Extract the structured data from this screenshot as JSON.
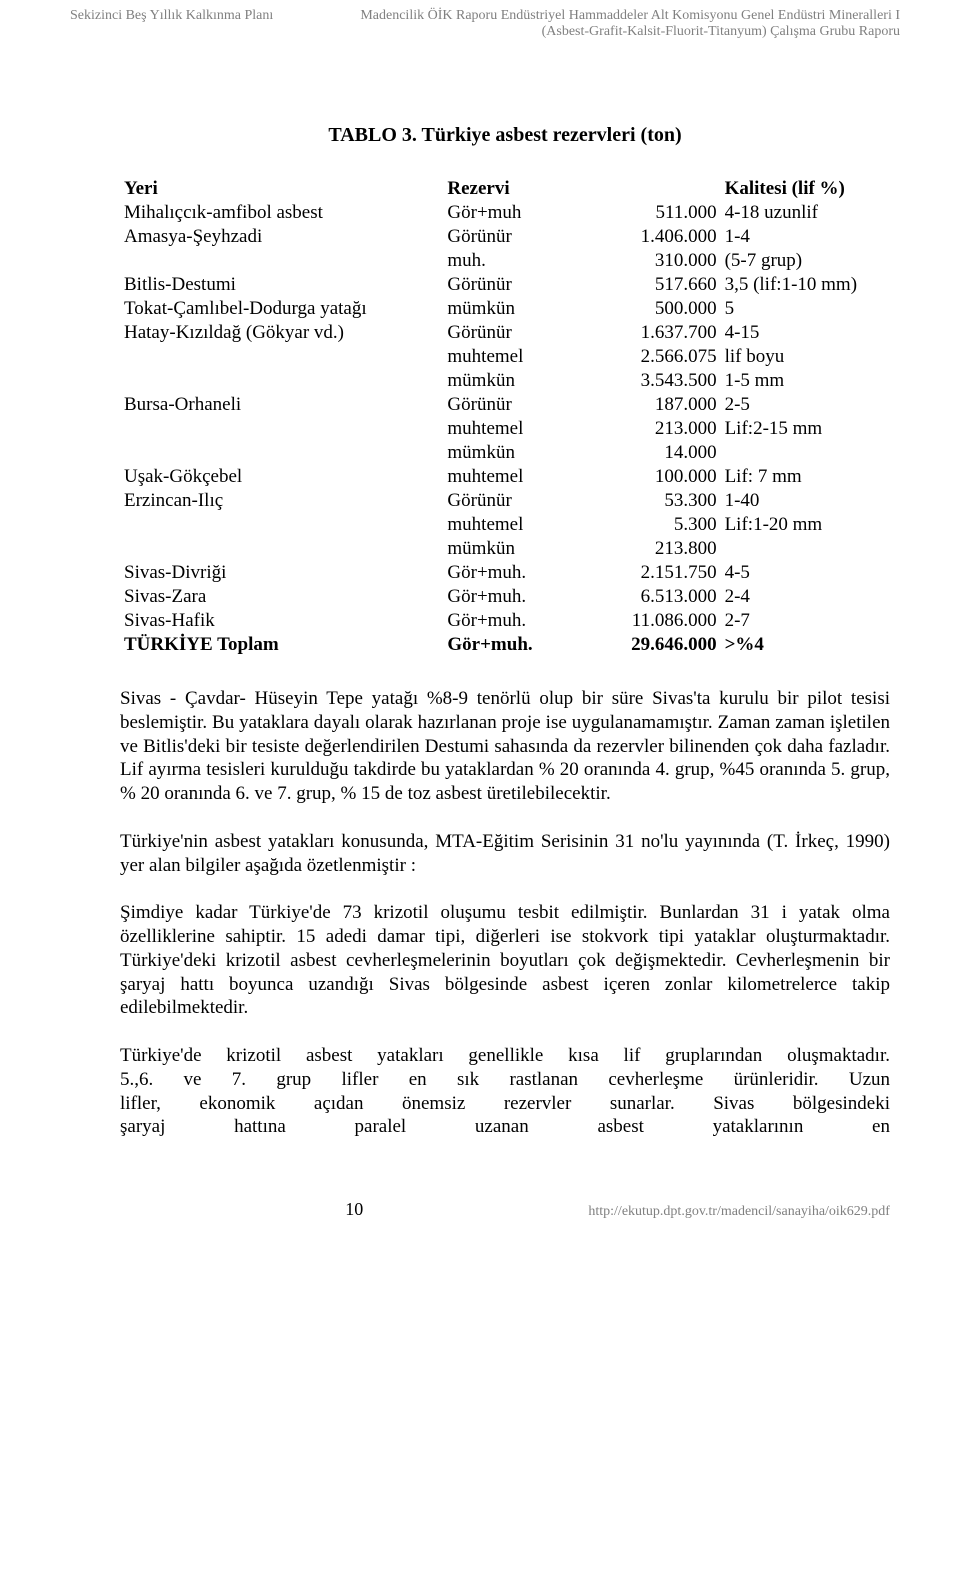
{
  "header": {
    "left": "Sekizinci Beş Yıllık Kalkınma Planı",
    "right1": "Madencilik ÖİK Raporu Endüstriyel Hammaddeler Alt Komisyonu Genel Endüstri Mineralleri I",
    "right2": "(Asbest-Grafit-Kalsit-Fluorit-Titanyum) Çalışma Grubu Raporu"
  },
  "title": "TABLO 3. Türkiye asbest rezervleri (ton)",
  "table": {
    "headers": {
      "yeri": "Yeri",
      "rezervi": "Rezervi",
      "kalitesi": "Kalitesi (lif %)"
    },
    "rows": [
      {
        "yeri": "Mihalıçcık-amfibol asbest",
        "rez": "Gör+muh",
        "val": "511.000",
        "kal": "4-18 uzunlif"
      },
      {
        "yeri": "Amasya-Şeyhzadi",
        "rez": "Görünür",
        "val": "1.406.000",
        "kal": "1-4"
      },
      {
        "yeri": "",
        "rez": "muh.",
        "val": "310.000",
        "kal": "(5-7 grup)"
      },
      {
        "yeri": "Bitlis-Destumi",
        "rez": "Görünür",
        "val": "517.660",
        "kal": "3,5 (lif:1-10 mm)"
      },
      {
        "yeri": "Tokat-Çamlıbel-Dodurga yatağı",
        "rez": "mümkün",
        "val": "500.000",
        "kal": "5"
      },
      {
        "yeri": "Hatay-Kızıldağ (Gökyar vd.)",
        "rez": "Görünür",
        "val": "1.637.700",
        "kal": "4-15"
      },
      {
        "yeri": "",
        "rez": "muhtemel",
        "val": "2.566.075",
        "kal": "lif boyu"
      },
      {
        "yeri": "",
        "rez": "mümkün",
        "val": "3.543.500",
        "kal": "1-5 mm"
      },
      {
        "yeri": "Bursa-Orhaneli",
        "rez": "Görünür",
        "val": "187.000",
        "kal": "2-5"
      },
      {
        "yeri": "",
        "rez": "muhtemel",
        "val": "213.000",
        "kal": "Lif:2-15 mm"
      },
      {
        "yeri": "",
        "rez": "mümkün",
        "val": "14.000",
        "kal": ""
      },
      {
        "yeri": "Uşak-Gökçebel",
        "rez": "muhtemel",
        "val": "100.000",
        "kal": "Lif: 7 mm"
      },
      {
        "yeri": "Erzincan-Ilıç",
        "rez": "Görünür",
        "val": "53.300",
        "kal": "1-40"
      },
      {
        "yeri": "",
        "rez": "muhtemel",
        "val": "5.300",
        "kal": "Lif:1-20 mm"
      },
      {
        "yeri": "",
        "rez": "mümkün",
        "val": "213.800",
        "kal": ""
      },
      {
        "yeri": "Sivas-Divriği",
        "rez": "Gör+muh.",
        "val": "2.151.750",
        "kal": "4-5"
      },
      {
        "yeri": "Sivas-Zara",
        "rez": "Gör+muh.",
        "val": "6.513.000",
        "kal": "2-4"
      },
      {
        "yeri": "Sivas-Hafik",
        "rez": "Gör+muh.",
        "val": "11.086.000",
        "kal": "2-7"
      },
      {
        "yeri": "TÜRKİYE Toplam",
        "rez": "Gör+muh.",
        "val": "29.646.000",
        "kal": ">%4",
        "bold": true
      }
    ]
  },
  "paragraphs": {
    "p1": "Sivas - Çavdar- Hüseyin Tepe yatağı %8-9 tenörlü olup bir süre Sivas'ta kurulu bir pilot tesisi beslemiştir. Bu yataklara dayalı olarak hazırlanan proje ise uygulanamamıştır. Zaman zaman işletilen ve Bitlis'deki bir tesiste değerlendirilen Destumi sahasında da rezervler bilinenden çok daha fazladır. Lif ayırma tesisleri kurulduğu takdirde bu yataklardan % 20 oranında 4. grup, %45 oranında 5. grup, % 20 oranında 6. ve 7. grup, % 15 de toz asbest üretilebilecektir.",
    "p2": "Türkiye'nin asbest yatakları konusunda, MTA-Eğitim Serisinin 31 no'lu yayınında (T. İrkeç, 1990) yer alan bilgiler aşağıda özetlenmiştir :",
    "p3": "Şimdiye kadar Türkiye'de 73 krizotil oluşumu tesbit edilmiştir. Bunlardan 31 i yatak olma özelliklerine sahiptir. 15 adedi damar tipi, diğerleri ise stokvork tipi yataklar oluşturmaktadır. Türkiye'deki krizotil asbest cevherleşmelerinin boyutları çok değişmektedir. Cevherleşmenin bir şaryaj hattı boyunca uzandığı Sivas bölgesinde asbest içeren zonlar kilometrelerce takip edilebilmektedir.",
    "p4a": "Türkiye'de krizotil asbest yatakları genellikle kısa lif gruplarından oluşmaktadır.",
    "p4b": "5.,6.  ve  7.  grup  lifler  en  sık  rastlanan  cevherleşme  ürünleridir.  Uzun",
    "p4c": "lifler,  ekonomik  açıdan  önemsiz  rezervler  sunarlar.  Sivas  bölgesindeki",
    "p4d": "şaryaj  hattına  paralel  uzanan  asbest  yataklarının  en"
  },
  "footer": {
    "pagenum": "10",
    "url": "http://ekutup.dpt.gov.tr/madencil/sanayiha/oik629.pdf"
  }
}
